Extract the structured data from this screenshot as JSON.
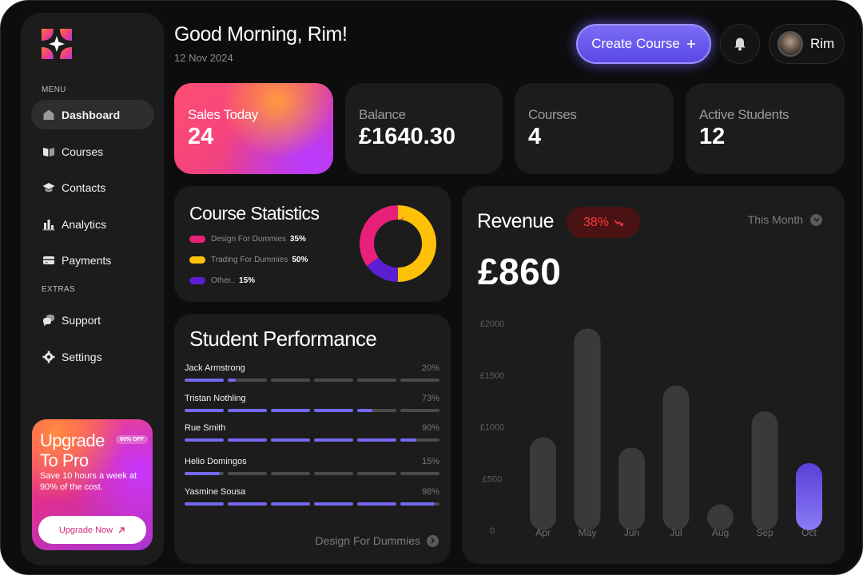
{
  "header": {
    "greeting": "Good Morning, Rim!",
    "date": "12 Nov 2024",
    "create_button": "Create Course",
    "user_name": "Rim"
  },
  "sidebar": {
    "menu_label": "MENU",
    "extras_label": "EXTRAS",
    "menu_items": [
      {
        "label": "Dashboard",
        "icon": "home-icon",
        "active": true
      },
      {
        "label": "Courses",
        "icon": "book-icon"
      },
      {
        "label": "Contacts",
        "icon": "graduation-cap-icon"
      },
      {
        "label": "Analytics",
        "icon": "bar-chart-icon"
      },
      {
        "label": "Payments",
        "icon": "credit-card-icon"
      }
    ],
    "extras_items": [
      {
        "label": "Support",
        "icon": "chat-bubbles-icon"
      },
      {
        "label": "Settings",
        "icon": "gear-icon"
      }
    ],
    "promo": {
      "title": "Upgrade To Pro",
      "badge": "60% OFF",
      "text": "Save 10 hours a week at 90% of the cost.",
      "button": "Upgrade Now"
    }
  },
  "stats": [
    {
      "label": "Sales Today",
      "value": "24"
    },
    {
      "label": "Balance",
      "value": "£1640.30"
    },
    {
      "label": "Courses",
      "value": "4"
    },
    {
      "label": "Active Students",
      "value": "12"
    }
  ],
  "course_statistics": {
    "title": "Course Statistics",
    "items": [
      {
        "name": "Design For Dummies",
        "percent": "35%",
        "value": 35,
        "color": "#e8207a"
      },
      {
        "name": "Trading For Dummies",
        "percent": "50%",
        "value": 50,
        "color": "#ffc107"
      },
      {
        "name": "Other..",
        "percent": "15%",
        "value": 15,
        "color": "#5b1fd1"
      }
    ]
  },
  "student_performance": {
    "title": "Student Performance",
    "students": [
      {
        "name": "Jack Armstrong",
        "percent": "20%",
        "value": 20
      },
      {
        "name": "Tristan Nothling",
        "percent": "73%",
        "value": 73
      },
      {
        "name": "Rue Smith",
        "percent": "90%",
        "value": 90
      },
      {
        "name": "Helio Domingos",
        "percent": "15%",
        "value": 15
      },
      {
        "name": "Yasmine Sousa",
        "percent": "98%",
        "value": 98
      }
    ],
    "footer": "Design For Dummies"
  },
  "revenue": {
    "title": "Revenue",
    "change": "38%",
    "change_color": "#ff3b3b",
    "period": "This Month",
    "amount": "£860",
    "accent": "#7369f0"
  },
  "chart_data": {
    "type": "bar",
    "categories": [
      "Apr",
      "May",
      "Jun",
      "Jul",
      "Aug",
      "Sep",
      "Oct"
    ],
    "values": [
      900,
      1950,
      800,
      1400,
      250,
      1150,
      650
    ],
    "highlight": "Oct",
    "y_ticks": [
      "0",
      "£500",
      "£1000",
      "£1500",
      "£2000"
    ],
    "ylim": [
      0,
      2000
    ],
    "grid": false
  }
}
